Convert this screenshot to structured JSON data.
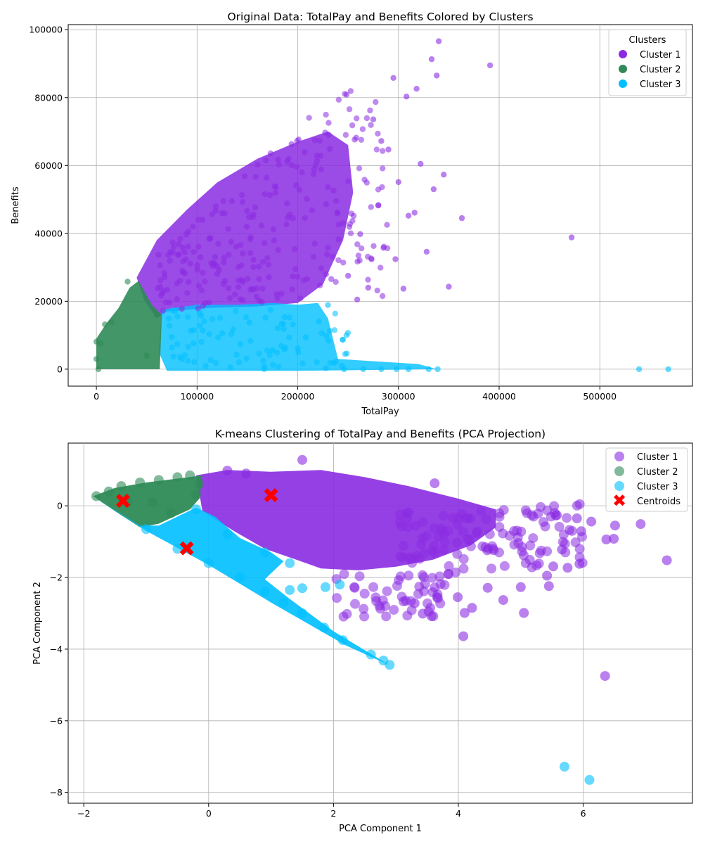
{
  "chart_data": [
    {
      "type": "scatter",
      "title": "Original Data: TotalPay and Benefits Colored by Clusters",
      "xlabel": "TotalPay",
      "ylabel": "Benefits",
      "xlim": [
        -28000,
        592000
      ],
      "ylim": [
        -5000,
        101500
      ],
      "xticks": [
        0,
        100000,
        200000,
        300000,
        400000,
        500000
      ],
      "yticks": [
        0,
        20000,
        40000,
        60000,
        80000,
        100000
      ],
      "grid": true,
      "legend": {
        "title": "Clusters",
        "placement": "top-right"
      },
      "series": [
        {
          "name": "Cluster 1",
          "color": "#8A2BE2",
          "note_region": "dense band from ~40000 to ~300000 TotalPay, Benefits ~15000 to ~85000",
          "points": [
            [
              472000,
              38800
            ],
            [
              391000,
              89500
            ],
            [
              340000,
              96600
            ],
            [
              350000,
              24300
            ],
            [
              363000,
              44500
            ],
            [
              333000,
              91300
            ],
            [
              318000,
              82600
            ],
            [
              308000,
              80300
            ],
            [
              295000,
              85800
            ],
            [
              338000,
              86500
            ],
            [
              305000,
              23700
            ],
            [
              297000,
              32400
            ],
            [
              335000,
              53000
            ],
            [
              322000,
              60500
            ],
            [
              345000,
              57300
            ],
            [
              310000,
              45200
            ],
            [
              283000,
              67200
            ],
            [
              270000,
              24000
            ],
            [
              259000,
              20500
            ],
            [
              250000,
              27500
            ],
            [
              280000,
              48200
            ],
            [
              262000,
              39800
            ],
            [
              290000,
              64700
            ],
            [
              328000,
              34600
            ],
            [
              316000,
              46100
            ],
            [
              300000,
              55100
            ],
            [
              275000,
              73600
            ]
          ]
        },
        {
          "name": "Cluster 2",
          "color": "#2E8B57",
          "note_region": "TotalPay 0 to ~65000, Benefits 0 to ~26000",
          "points": [
            [
              31000,
              25800
            ],
            [
              15000,
              13800
            ],
            [
              8500,
              13200
            ],
            [
              0,
              8100
            ],
            [
              4000,
              7600
            ],
            [
              0,
              3000
            ],
            [
              2000,
              0
            ],
            [
              60000,
              16000
            ],
            [
              50000,
              4000
            ]
          ]
        },
        {
          "name": "Cluster 3",
          "color": "#00BFFF",
          "note_region": "TotalPay ~40000 to ~340000, Benefits 0 to ~20000; outliers near 540000 and 568000",
          "points": [
            [
              539000,
              0
            ],
            [
              568000,
              0
            ],
            [
              339000,
              0
            ],
            [
              330000,
              0
            ],
            [
              310000,
              0
            ],
            [
              298000,
              0
            ],
            [
              283000,
              0
            ],
            [
              265000,
              0
            ],
            [
              246000,
              0
            ],
            [
              228000,
              300
            ],
            [
              221000,
              14100
            ],
            [
              230000,
              18900
            ],
            [
              208000,
              9400
            ],
            [
              200000,
              6100
            ],
            [
              180000,
              12100
            ],
            [
              175000,
              5600
            ],
            [
              168000,
              15200
            ],
            [
              152000,
              13700
            ],
            [
              143000,
              7400
            ],
            [
              125000,
              10600
            ]
          ]
        }
      ]
    },
    {
      "type": "scatter",
      "title": "K-means Clustering of TotalPay and Benefits (PCA Projection)",
      "xlabel": "PCA Component 1",
      "ylabel": "PCA Component 2",
      "xlim": [
        -2.25,
        7.75
      ],
      "ylim": [
        -8.3,
        1.75
      ],
      "xticks": [
        -2,
        0,
        2,
        4,
        6
      ],
      "yticks": [
        -8,
        -6,
        -4,
        -2,
        0
      ],
      "grid": true,
      "legend": {
        "placement": "top-right"
      },
      "series": [
        {
          "name": "Cluster 1",
          "color": "#8A2BE2",
          "note_region": "dense band from PCA1 ~0 to ~4.5, PCA2 ~-1.8 to ~1",
          "points": [
            [
              7.34,
              -1.52
            ],
            [
              6.92,
              -0.51
            ],
            [
              6.51,
              -0.55
            ],
            [
              6.37,
              -0.94
            ],
            [
              6.35,
              -4.75
            ],
            [
              6.49,
              -0.92
            ],
            [
              5.94,
              -1.62
            ],
            [
              5.75,
              -1.73
            ],
            [
              5.66,
              -1.22
            ],
            [
              5.52,
              -1.69
            ],
            [
              5.42,
              -1.95
            ],
            [
              5.45,
              -2.24
            ],
            [
              5.05,
              -2.99
            ],
            [
              5.0,
              -2.27
            ],
            [
              4.72,
              -2.63
            ],
            [
              4.47,
              -2.29
            ],
            [
              4.08,
              -3.64
            ],
            [
              4.1,
              -2.99
            ],
            [
              4.22,
              -2.85
            ],
            [
              3.99,
              -2.55
            ],
            [
              3.57,
              -3.08
            ],
            [
              3.43,
              -3.01
            ],
            [
              3.3,
              -2.72
            ],
            [
              3.16,
              -2.65
            ],
            [
              3.66,
              -2.55
            ],
            [
              5.97,
              -0.71
            ],
            [
              6.13,
              -0.44
            ],
            [
              5.9,
              -0.35
            ],
            [
              5.56,
              -0.27
            ],
            [
              3.62,
              0.63
            ],
            [
              1.5,
              1.28
            ],
            [
              0.3,
              0.98
            ],
            [
              0.6,
              0.9
            ]
          ]
        },
        {
          "name": "Cluster 2",
          "color": "#2E8B57",
          "note_region": "PCA1 ~-1.8 to ~-0.1, PCA2 ~-0.5 to ~0.8",
          "points": [
            [
              -1.8,
              0.27
            ],
            [
              -1.6,
              0.4
            ],
            [
              -1.4,
              0.55
            ],
            [
              -1.1,
              0.65
            ],
            [
              -0.8,
              0.72
            ],
            [
              -0.5,
              0.8
            ],
            [
              -0.3,
              0.85
            ],
            [
              -0.15,
              0.6
            ],
            [
              -0.2,
              0.3
            ],
            [
              -0.9,
              0.1
            ],
            [
              -1.3,
              0.1
            ],
            [
              -0.6,
              -0.2
            ]
          ]
        },
        {
          "name": "Cluster 3",
          "color": "#00BFFF",
          "note_region": "diagonal band from (-1.8, 0.3) to (2.9, -4.5); outliers near (5.7, -7.3) and (6.1, -7.7)",
          "points": [
            [
              5.7,
              -7.28
            ],
            [
              6.1,
              -7.65
            ],
            [
              2.9,
              -4.44
            ],
            [
              2.8,
              -4.32
            ],
            [
              2.6,
              -4.15
            ],
            [
              2.15,
              -3.75
            ],
            [
              1.85,
              -3.4
            ],
            [
              1.5,
              -3.0
            ],
            [
              1.2,
              -2.7
            ],
            [
              0.9,
              -2.4
            ],
            [
              1.3,
              -2.35
            ],
            [
              1.5,
              -2.3
            ],
            [
              1.87,
              -2.27
            ],
            [
              2.1,
              -2.2
            ],
            [
              0.5,
              -2.0
            ],
            [
              0.0,
              -1.6
            ],
            [
              -0.5,
              -1.2
            ],
            [
              -1.0,
              -0.65
            ],
            [
              -0.2,
              -0.1
            ],
            [
              0.3,
              -0.8
            ],
            [
              0.9,
              -1.3
            ],
            [
              1.3,
              -1.6
            ]
          ]
        },
        {
          "name": "Centroids",
          "color": "#FF0000",
          "marker": "X",
          "points": [
            [
              -1.37,
              0.12
            ],
            [
              1.0,
              0.28
            ],
            [
              -0.35,
              -1.2
            ]
          ]
        }
      ]
    }
  ]
}
